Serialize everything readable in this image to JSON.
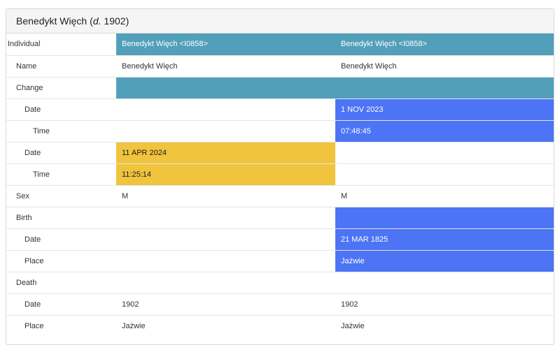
{
  "header": {
    "name": "Benedykt Więch",
    "lifespan_prefix": "(",
    "lifespan_mark": "d.",
    "lifespan_year": "1902)"
  },
  "colors": {
    "teal": "#529fba",
    "blue": "#4d74f5",
    "yellow": "#f1c43e"
  },
  "rows": [
    {
      "label": "Individual",
      "v1": "Benedykt Więch <I0858>",
      "v2": "Benedykt Więch <I0858>"
    },
    {
      "label": "Name",
      "v1": "Benedykt Więch",
      "v2": "Benedykt Więch"
    },
    {
      "label": "Change",
      "v1": "",
      "v2": ""
    },
    {
      "label": "Date",
      "v1": "",
      "v2": "1 NOV 2023"
    },
    {
      "label": "Time",
      "v1": "",
      "v2": "07:48:45"
    },
    {
      "label": "Date",
      "v1": "11 APR 2024",
      "v2": ""
    },
    {
      "label": "Time",
      "v1": "11:25:14",
      "v2": ""
    },
    {
      "label": "Sex",
      "v1": "M",
      "v2": "M"
    },
    {
      "label": "Birth",
      "v1": "",
      "v2": ""
    },
    {
      "label": "Date",
      "v1": "",
      "v2": "21 MAR 1825"
    },
    {
      "label": "Place",
      "v1": "",
      "v2": "Jażwie"
    },
    {
      "label": "Death",
      "v1": "",
      "v2": ""
    },
    {
      "label": "Date",
      "v1": "1902",
      "v2": "1902"
    },
    {
      "label": "Place",
      "v1": "Jażwie",
      "v2": "Jażwie"
    }
  ]
}
